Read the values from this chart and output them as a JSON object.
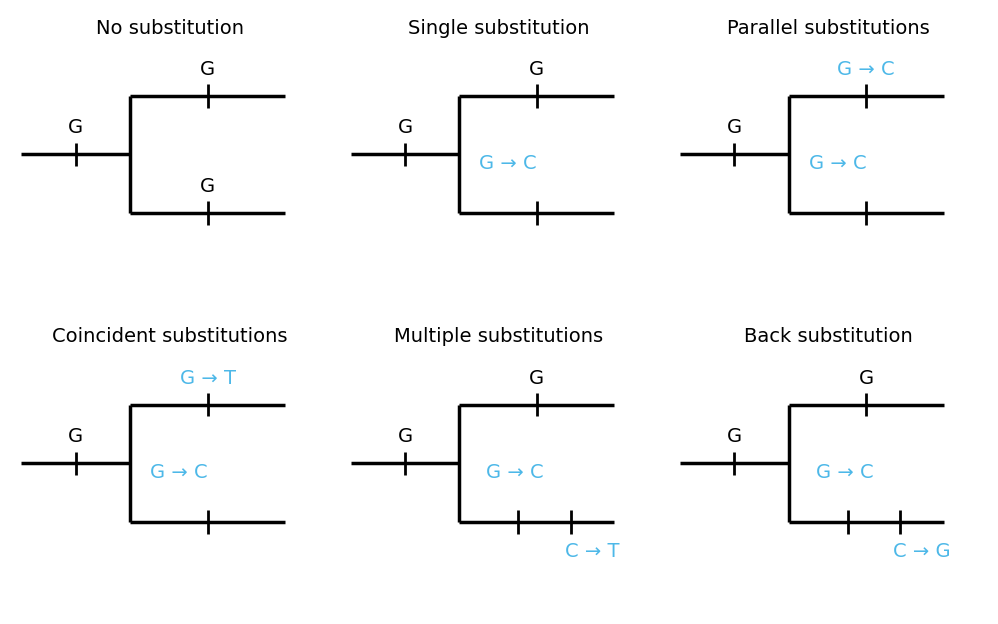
{
  "titles": [
    "No substitution",
    "Single substitution",
    "Parallel substitutions",
    "Coincident substitutions",
    "Multiple substitutions",
    "Back substitution"
  ],
  "panels": [
    {
      "stem_label": "G",
      "stem_label_color": "black",
      "top_label": "G",
      "top_color": "black",
      "bottom_label": "G",
      "bottom_color": "black",
      "extra_tick": false,
      "bottom_extra_label": null,
      "bottom_extra_color": null
    },
    {
      "stem_label": "G",
      "stem_label_color": "black",
      "top_label": "G",
      "top_color": "black",
      "bottom_label": "G → C",
      "bottom_color": "#4db8e8",
      "extra_tick": false,
      "bottom_extra_label": null,
      "bottom_extra_color": null
    },
    {
      "stem_label": "G",
      "stem_label_color": "black",
      "top_label": "G → C",
      "top_color": "#4db8e8",
      "bottom_label": "G → C",
      "bottom_color": "#4db8e8",
      "extra_tick": false,
      "bottom_extra_label": null,
      "bottom_extra_color": null
    },
    {
      "stem_label": "G",
      "stem_label_color": "black",
      "top_label": "G → T",
      "top_color": "#4db8e8",
      "bottom_label": "G → C",
      "bottom_color": "#4db8e8",
      "extra_tick": false,
      "bottom_extra_label": null,
      "bottom_extra_color": null
    },
    {
      "stem_label": "G",
      "stem_label_color": "black",
      "top_label": "G",
      "top_color": "black",
      "bottom_label": "G → C",
      "bottom_color": "#4db8e8",
      "extra_tick": true,
      "bottom_extra_label": "C → T",
      "bottom_extra_color": "#4db8e8"
    },
    {
      "stem_label": "G",
      "stem_label_color": "black",
      "top_label": "G",
      "top_color": "black",
      "bottom_label": "G → C",
      "bottom_color": "#4db8e8",
      "extra_tick": true,
      "bottom_extra_label": "C → G",
      "bottom_extra_color": "#4db8e8"
    }
  ],
  "line_color": "black",
  "line_width": 2.5,
  "tick_linewidth": 2.0,
  "title_fontsize": 14,
  "label_fontsize": 14,
  "blue_color": "#4db8e8",
  "bg_color": "white",
  "border_color": "#555555"
}
